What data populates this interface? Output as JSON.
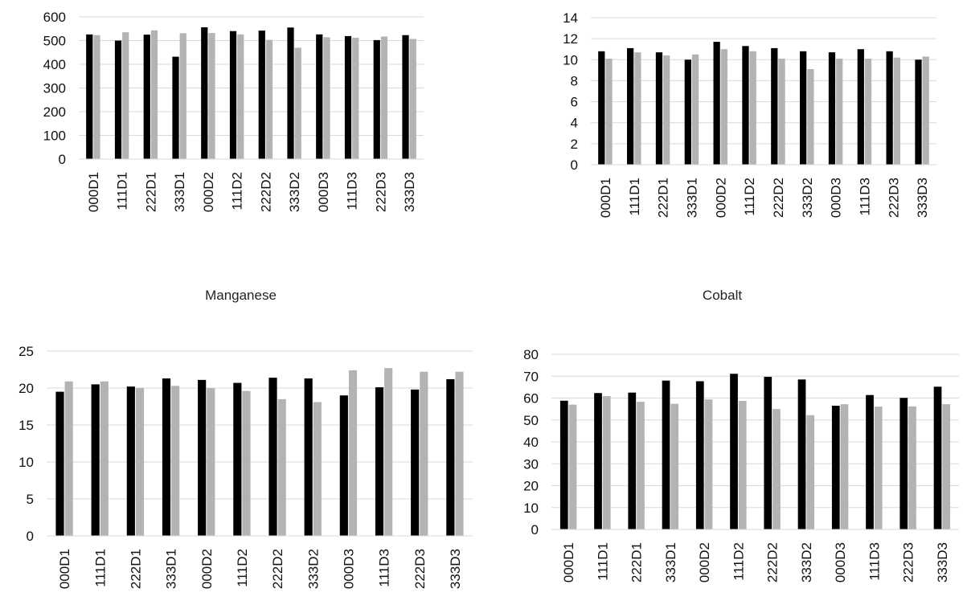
{
  "colors": {
    "series_a": "#000000",
    "series_b": "#b3b3b3",
    "grid": "#d9d9d9"
  },
  "chart_data": [
    {
      "type": "bar",
      "title": "",
      "xlabel": "",
      "ylabel": "",
      "categories": [
        "000D1",
        "111D1",
        "222D1",
        "333D1",
        "000D2",
        "111D2",
        "222D2",
        "333D2",
        "000D3",
        "111D3",
        "222D3",
        "333D3"
      ],
      "series": [
        {
          "values": [
            526,
            500,
            525,
            432,
            556,
            540,
            542,
            555,
            526,
            519,
            502,
            523
          ]
        },
        {
          "values": [
            523,
            535,
            543,
            531,
            532,
            526,
            503,
            470,
            514,
            512,
            517,
            507
          ]
        }
      ],
      "ylim": [
        0,
        600
      ],
      "yticks": [
        0,
        100,
        200,
        300,
        400,
        500,
        600
      ],
      "grid": true,
      "legend": "none"
    },
    {
      "type": "bar",
      "title": "",
      "xlabel": "",
      "ylabel": "",
      "categories": [
        "000D1",
        "111D1",
        "222D1",
        "333D1",
        "000D2",
        "111D2",
        "222D2",
        "333D2",
        "000D3",
        "111D3",
        "222D3",
        "333D3"
      ],
      "series": [
        {
          "values": [
            10.8,
            11.1,
            10.7,
            10.0,
            11.7,
            11.3,
            11.1,
            10.8,
            10.7,
            11.0,
            10.8,
            10.0
          ]
        },
        {
          "values": [
            10.1,
            10.7,
            10.4,
            10.5,
            11.0,
            10.8,
            10.1,
            9.1,
            10.1,
            10.1,
            10.2,
            10.3
          ]
        }
      ],
      "ylim": [
        0,
        14
      ],
      "yticks": [
        0,
        2,
        4,
        6,
        8,
        10,
        12,
        14
      ],
      "grid": true,
      "legend": "none"
    },
    {
      "type": "bar",
      "title": "Manganese",
      "xlabel": "",
      "ylabel": "",
      "categories": [
        "000D1",
        "111D1",
        "222D1",
        "333D1",
        "000D2",
        "111D2",
        "222D2",
        "333D2",
        "000D3",
        "111D3",
        "222D3",
        "333D3"
      ],
      "series": [
        {
          "values": [
            19.5,
            20.5,
            20.2,
            21.3,
            21.1,
            20.7,
            21.4,
            21.3,
            19.0,
            20.1,
            19.8,
            21.2
          ]
        },
        {
          "values": [
            20.9,
            20.9,
            20.0,
            20.3,
            20.0,
            19.6,
            18.5,
            18.1,
            22.4,
            22.7,
            22.2,
            22.2
          ]
        }
      ],
      "ylim": [
        0,
        25
      ],
      "yticks": [
        0,
        5,
        10,
        15,
        20,
        25
      ],
      "grid": true,
      "legend": "none"
    },
    {
      "type": "bar",
      "title": "Cobalt",
      "xlabel": "",
      "ylabel": "",
      "categories": [
        "000D1",
        "111D1",
        "222D1",
        "333D1",
        "000D2",
        "111D2",
        "222D2",
        "333D2",
        "000D3",
        "111D3",
        "222D3",
        "333D3"
      ],
      "series": [
        {
          "values": [
            58.8,
            62.3,
            62.5,
            68.0,
            67.7,
            71.1,
            69.7,
            68.5,
            56.5,
            61.4,
            60.1,
            65.2
          ]
        },
        {
          "values": [
            57.0,
            60.9,
            58.3,
            57.4,
            59.4,
            58.7,
            55.0,
            52.2,
            57.2,
            56.1,
            56.2,
            57.2
          ]
        }
      ],
      "ylim": [
        0,
        80
      ],
      "yticks": [
        0,
        10,
        20,
        30,
        40,
        50,
        60,
        70,
        80
      ],
      "grid": true,
      "legend": "none"
    }
  ]
}
